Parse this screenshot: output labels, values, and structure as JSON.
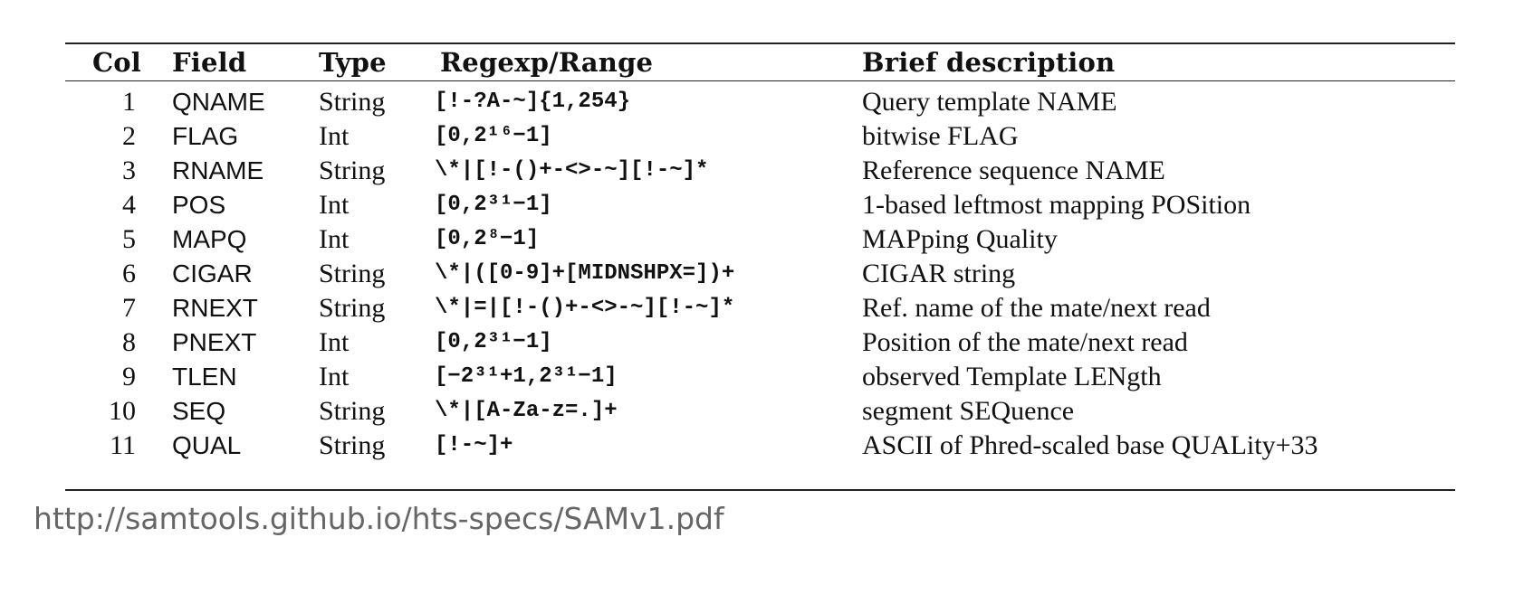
{
  "table": {
    "headers": {
      "col": "Col",
      "field": "Field",
      "type": "Type",
      "regex": "Regexp/Range",
      "desc": "Brief description"
    },
    "rows": [
      {
        "col": "1",
        "field": "QNAME",
        "type": "String",
        "regex": "[!-?A-~]{1,254}",
        "desc": "Query template NAME"
      },
      {
        "col": "2",
        "field": "FLAG",
        "type": "Int",
        "regex": "[0,2¹⁶−1]",
        "desc": "bitwise FLAG"
      },
      {
        "col": "3",
        "field": "RNAME",
        "type": "String",
        "regex": "\\*|[!-()+-<>-~][!-~]*",
        "desc": "Reference sequence NAME"
      },
      {
        "col": "4",
        "field": "POS",
        "type": "Int",
        "regex": "[0,2³¹−1]",
        "desc": "1-based leftmost mapping POSition"
      },
      {
        "col": "5",
        "field": "MAPQ",
        "type": "Int",
        "regex": "[0,2⁸−1]",
        "desc": "MAPping Quality"
      },
      {
        "col": "6",
        "field": "CIGAR",
        "type": "String",
        "regex": "\\*|([0-9]+[MIDNSHPX=])+",
        "desc": "CIGAR string"
      },
      {
        "col": "7",
        "field": "RNEXT",
        "type": "String",
        "regex": "\\*|=|[!-()+-<>-~][!-~]*",
        "desc": "Ref. name of the mate/next read"
      },
      {
        "col": "8",
        "field": "PNEXT",
        "type": "Int",
        "regex": "[0,2³¹−1]",
        "desc": "Position of the mate/next read"
      },
      {
        "col": "9",
        "field": "TLEN",
        "type": "Int",
        "regex": "[−2³¹+1,2³¹−1]",
        "desc": "observed Template LENgth"
      },
      {
        "col": "10",
        "field": "SEQ",
        "type": "String",
        "regex": "\\*|[A-Za-z=.]+",
        "desc": "segment SEQuence"
      },
      {
        "col": "11",
        "field": "QUAL",
        "type": "String",
        "regex": "[!-~]+",
        "desc": "ASCII of Phred-scaled base QUALity+33"
      }
    ]
  },
  "source": "http://samtools.github.io/hts-specs/SAMv1.pdf"
}
